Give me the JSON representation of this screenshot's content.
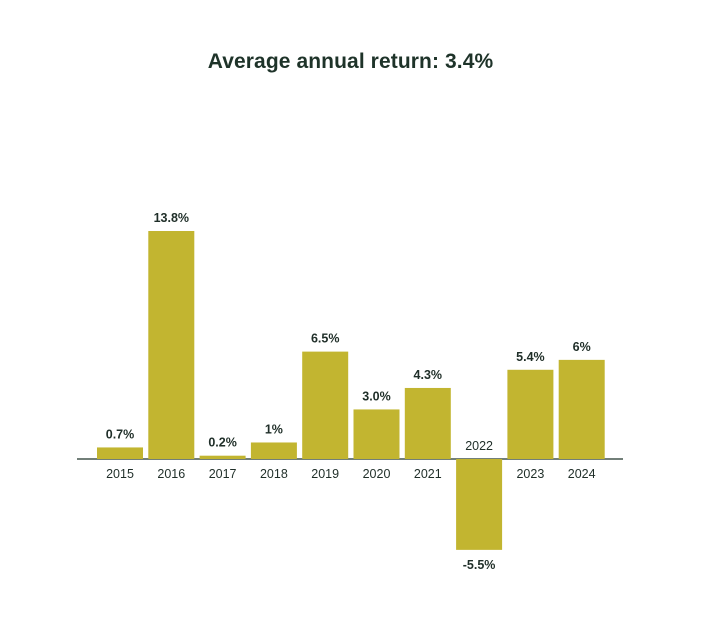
{
  "chart_data": {
    "type": "bar",
    "title": "Average annual return: 3.4%",
    "categories": [
      "2015",
      "2016",
      "2017",
      "2018",
      "2019",
      "2020",
      "2021",
      "2022",
      "2023",
      "2024"
    ],
    "values": [
      0.7,
      13.8,
      0.2,
      1.0,
      6.5,
      3.0,
      4.3,
      -5.5,
      5.4,
      6.0
    ],
    "data_labels": [
      "0.7%",
      "13.8%",
      "0.2%",
      "1%",
      "6.5%",
      "3.0%",
      "4.3%",
      "-5.5%",
      "5.4%",
      "6%"
    ],
    "xlabel": "",
    "ylabel": "",
    "ylim": [
      -5.5,
      13.8
    ],
    "grid": false,
    "bar_color": "#c2b530",
    "axis_color": "#1e3329"
  }
}
